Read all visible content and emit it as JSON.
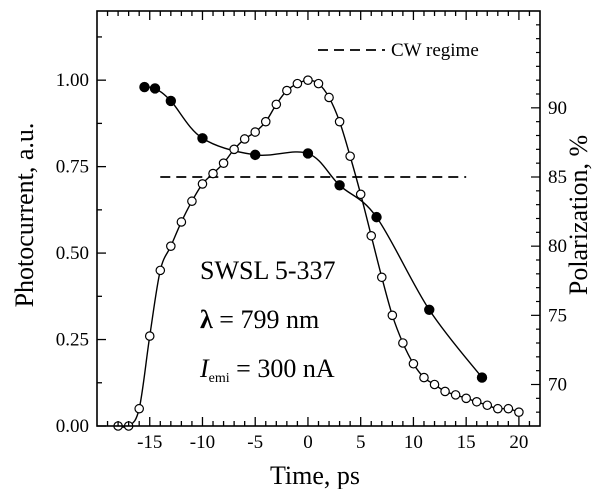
{
  "chart_data": {
    "type": "line",
    "xlabel": "Time,  ps",
    "ylabel_left": "Photocurrent,  a.u.",
    "ylabel_right": "Polarization,  %",
    "xlim": [
      -20,
      22
    ],
    "ylim_left": [
      0,
      1.2
    ],
    "ylim_right": [
      67,
      97
    ],
    "x_ticks": [
      -15,
      -10,
      -5,
      0,
      5,
      10,
      15,
      20
    ],
    "x_tick_labels": [
      "-15",
      "-10",
      "-5",
      "0",
      "5",
      "10",
      "15",
      "20"
    ],
    "y_left_ticks": [
      0,
      0.25,
      0.5,
      0.75,
      1.0
    ],
    "y_left_tick_labels": [
      "0.00",
      "0.25",
      "0.50",
      "0.75",
      "1.00"
    ],
    "y_right_ticks": [
      70,
      75,
      80,
      85,
      90
    ],
    "y_right_tick_labels": [
      "70",
      "75",
      "80",
      "85",
      "90"
    ],
    "grid": false,
    "legend": {
      "position": "top-right",
      "label": "CW regime"
    },
    "annotations": {
      "sample": "SWSL 5-337",
      "lambda_symbol": "λ",
      "lambda_rest": " = 799 nm",
      "current_I": "I",
      "current_sub": "emi",
      "current_rest": " = 300 nA"
    },
    "series": [
      {
        "axis": "left",
        "marker": "open-circle",
        "x": [
          -18,
          -17,
          -16,
          -15,
          -14,
          -13,
          -12,
          -11,
          -10,
          -9,
          -8,
          -7,
          -6,
          -5,
          -4,
          -3,
          -2,
          -1,
          0,
          1,
          2,
          3,
          4,
          5,
          6,
          7,
          8,
          9,
          10,
          11,
          12,
          13,
          14,
          15,
          16,
          17,
          18,
          19,
          20
        ],
        "values": [
          0.0,
          0.0,
          0.05,
          0.26,
          0.45,
          0.52,
          0.59,
          0.65,
          0.7,
          0.73,
          0.76,
          0.8,
          0.83,
          0.85,
          0.88,
          0.93,
          0.97,
          0.99,
          1.0,
          0.99,
          0.95,
          0.88,
          0.78,
          0.67,
          0.55,
          0.43,
          0.32,
          0.24,
          0.18,
          0.14,
          0.12,
          0.1,
          0.09,
          0.08,
          0.07,
          0.06,
          0.05,
          0.05,
          0.04
        ]
      },
      {
        "axis": "right",
        "marker": "filled-circle",
        "x": [
          -15.5,
          -14.5,
          -13,
          -10,
          -5,
          0,
          3,
          6.5,
          11.5,
          16.5
        ],
        "values": [
          91.5,
          91.4,
          90.5,
          87.8,
          86.6,
          86.7,
          84.4,
          82.1,
          75.4,
          70.5
        ]
      },
      {
        "axis": "right",
        "style": "dashed",
        "x": [
          -14,
          15
        ],
        "values": [
          85.0,
          85.0
        ]
      }
    ]
  }
}
